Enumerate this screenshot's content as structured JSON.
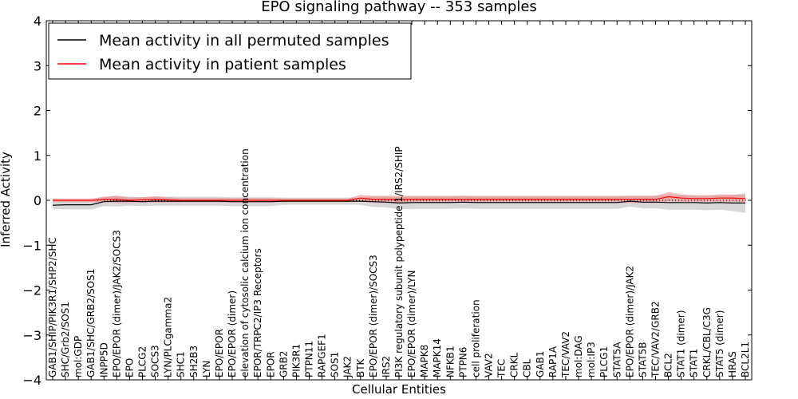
{
  "chart_data": {
    "type": "line",
    "title": "EPO signaling pathway -- 353 samples",
    "xlabel": "Cellular Entities",
    "ylabel": "Inferred Activity",
    "ylim": [
      -4,
      4
    ],
    "yticks": [
      -4,
      -3,
      -2,
      -1,
      0,
      1,
      2,
      3,
      4
    ],
    "ytick_labels": [
      "−4",
      "−3",
      "−2",
      "−1",
      "0",
      "1",
      "2",
      "3",
      "4"
    ],
    "legend_position": "top-left",
    "categories": [
      "GAB1/SHIP/PIK3R1/SHP2/SHC",
      "SHC/Grb2/SOS1",
      "mol:GDP",
      "GAB1/SHC/GRB2/SOS1",
      "INPP5D",
      "EPO/EPOR (dimer)/JAK2/SOCS3",
      "EPO",
      "PLCG2",
      "SOCS3",
      "LYN/PLCgamma2",
      "SHC1",
      "SH2B3",
      "LYN",
      "EPO/EPOR",
      "EPO/EPOR (dimer)",
      "elevation of cytosolic calcium ion concentration",
      "EPOR/TRPC2/IP3 Receptors",
      "EPOR",
      "GRB2",
      "PIK3R1",
      "PTPN11",
      "RAPGEF1",
      "SOS1",
      "JAK2",
      "BTK",
      "EPO/EPOR (dimer)/SOCS3",
      "IRS2",
      "PI3K regulatory subunit polypeptide 1/IRS2/SHIP",
      "EPO/EPOR (dimer)/LYN",
      "MAPK8",
      "MAPK14",
      "NFKB1",
      "PTPN6",
      "cell proliferation",
      "VAV2",
      "TEC",
      "CRKL",
      "CBL",
      "GAB1",
      "RAP1A",
      "TEC/VAV2",
      "mol:DAG",
      "mol:IP3",
      "PLCG1",
      "STAT5A",
      "EPO/EPOR (dimer)/JAK2",
      "STAT5B",
      "TEC/VAV2/GRB2",
      "BCL2",
      "STAT1 (dimer)",
      "STAT1",
      "CRKL/CBL/C3G",
      "STAT5 (dimer)",
      "HRAS",
      "BCL2L1"
    ],
    "series": [
      {
        "name": "Mean activity in all permuted samples",
        "color": "#000000",
        "band_color": "#b0b0b0",
        "values": [
          -0.11,
          -0.1,
          -0.1,
          -0.1,
          -0.03,
          -0.02,
          -0.02,
          -0.03,
          -0.02,
          -0.02,
          -0.02,
          -0.02,
          -0.02,
          -0.02,
          -0.03,
          -0.03,
          -0.03,
          -0.03,
          -0.02,
          -0.02,
          -0.02,
          -0.02,
          -0.02,
          -0.02,
          -0.02,
          -0.03,
          -0.04,
          -0.06,
          -0.05,
          -0.05,
          -0.05,
          -0.05,
          -0.04,
          -0.05,
          -0.05,
          -0.05,
          -0.05,
          -0.05,
          -0.05,
          -0.05,
          -0.05,
          -0.05,
          -0.05,
          -0.05,
          -0.05,
          -0.02,
          -0.04,
          -0.04,
          -0.05,
          -0.05,
          -0.05,
          -0.06,
          -0.05,
          -0.06,
          -0.06
        ],
        "band": [
          0.08,
          0.1,
          0.1,
          0.1,
          0.1,
          0.12,
          0.1,
          0.1,
          0.1,
          0.1,
          0.1,
          0.1,
          0.1,
          0.1,
          0.1,
          0.1,
          0.1,
          0.1,
          0.08,
          0.08,
          0.08,
          0.08,
          0.08,
          0.08,
          0.08,
          0.12,
          0.12,
          0.14,
          0.14,
          0.14,
          0.14,
          0.14,
          0.14,
          0.14,
          0.14,
          0.14,
          0.14,
          0.14,
          0.14,
          0.14,
          0.14,
          0.14,
          0.14,
          0.14,
          0.14,
          0.12,
          0.14,
          0.14,
          0.16,
          0.16,
          0.16,
          0.16,
          0.16,
          0.18,
          0.22
        ]
      },
      {
        "name": "Mean activity in patient samples",
        "color": "#ff0000",
        "band_color": "#f08080",
        "values": [
          0.0,
          0.0,
          0.0,
          0.0,
          0.02,
          0.02,
          0.0,
          0.01,
          0.02,
          0.01,
          0.0,
          0.0,
          0.0,
          0.0,
          0.0,
          0.0,
          0.0,
          0.0,
          0.0,
          0.0,
          0.0,
          0.0,
          0.0,
          0.0,
          0.05,
          0.02,
          0.02,
          0.02,
          0.02,
          0.02,
          0.02,
          0.02,
          0.02,
          0.02,
          0.02,
          0.02,
          0.02,
          0.02,
          0.02,
          0.02,
          0.02,
          0.02,
          0.02,
          0.02,
          0.02,
          0.02,
          0.02,
          0.02,
          0.08,
          0.05,
          0.04,
          0.04,
          0.05,
          0.05,
          0.04
        ],
        "band": [
          0.04,
          0.04,
          0.04,
          0.04,
          0.06,
          0.08,
          0.06,
          0.06,
          0.07,
          0.06,
          0.05,
          0.05,
          0.05,
          0.05,
          0.05,
          0.05,
          0.05,
          0.05,
          0.04,
          0.04,
          0.04,
          0.04,
          0.04,
          0.04,
          0.07,
          0.08,
          0.08,
          0.08,
          0.08,
          0.08,
          0.08,
          0.08,
          0.08,
          0.08,
          0.08,
          0.08,
          0.08,
          0.08,
          0.08,
          0.08,
          0.08,
          0.08,
          0.08,
          0.08,
          0.08,
          0.08,
          0.08,
          0.08,
          0.1,
          0.08,
          0.07,
          0.07,
          0.08,
          0.08,
          0.08
        ]
      }
    ]
  }
}
